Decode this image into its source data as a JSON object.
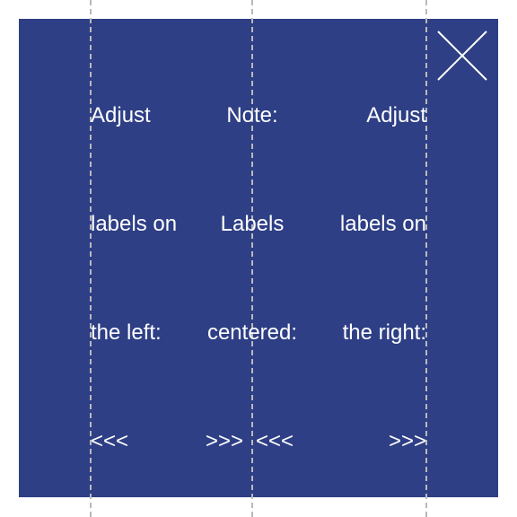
{
  "columns": {
    "left": {
      "lines": [
        "Adjust",
        "labels on",
        "the left:",
        "<<<"
      ]
    },
    "center": {
      "lines": [
        "Note:",
        "Labels",
        "centered:"
      ],
      "arrow_right": ">>>",
      "arrow_left": "<<<"
    },
    "right": {
      "lines": [
        "Adjust",
        "labels on",
        "the right:",
        ">>>"
      ]
    }
  },
  "icons": {
    "close": "close-icon"
  },
  "colors": {
    "panel_background": "#2e3f85",
    "text": "#ffffff",
    "guide_lines": "#b9b9b9"
  }
}
